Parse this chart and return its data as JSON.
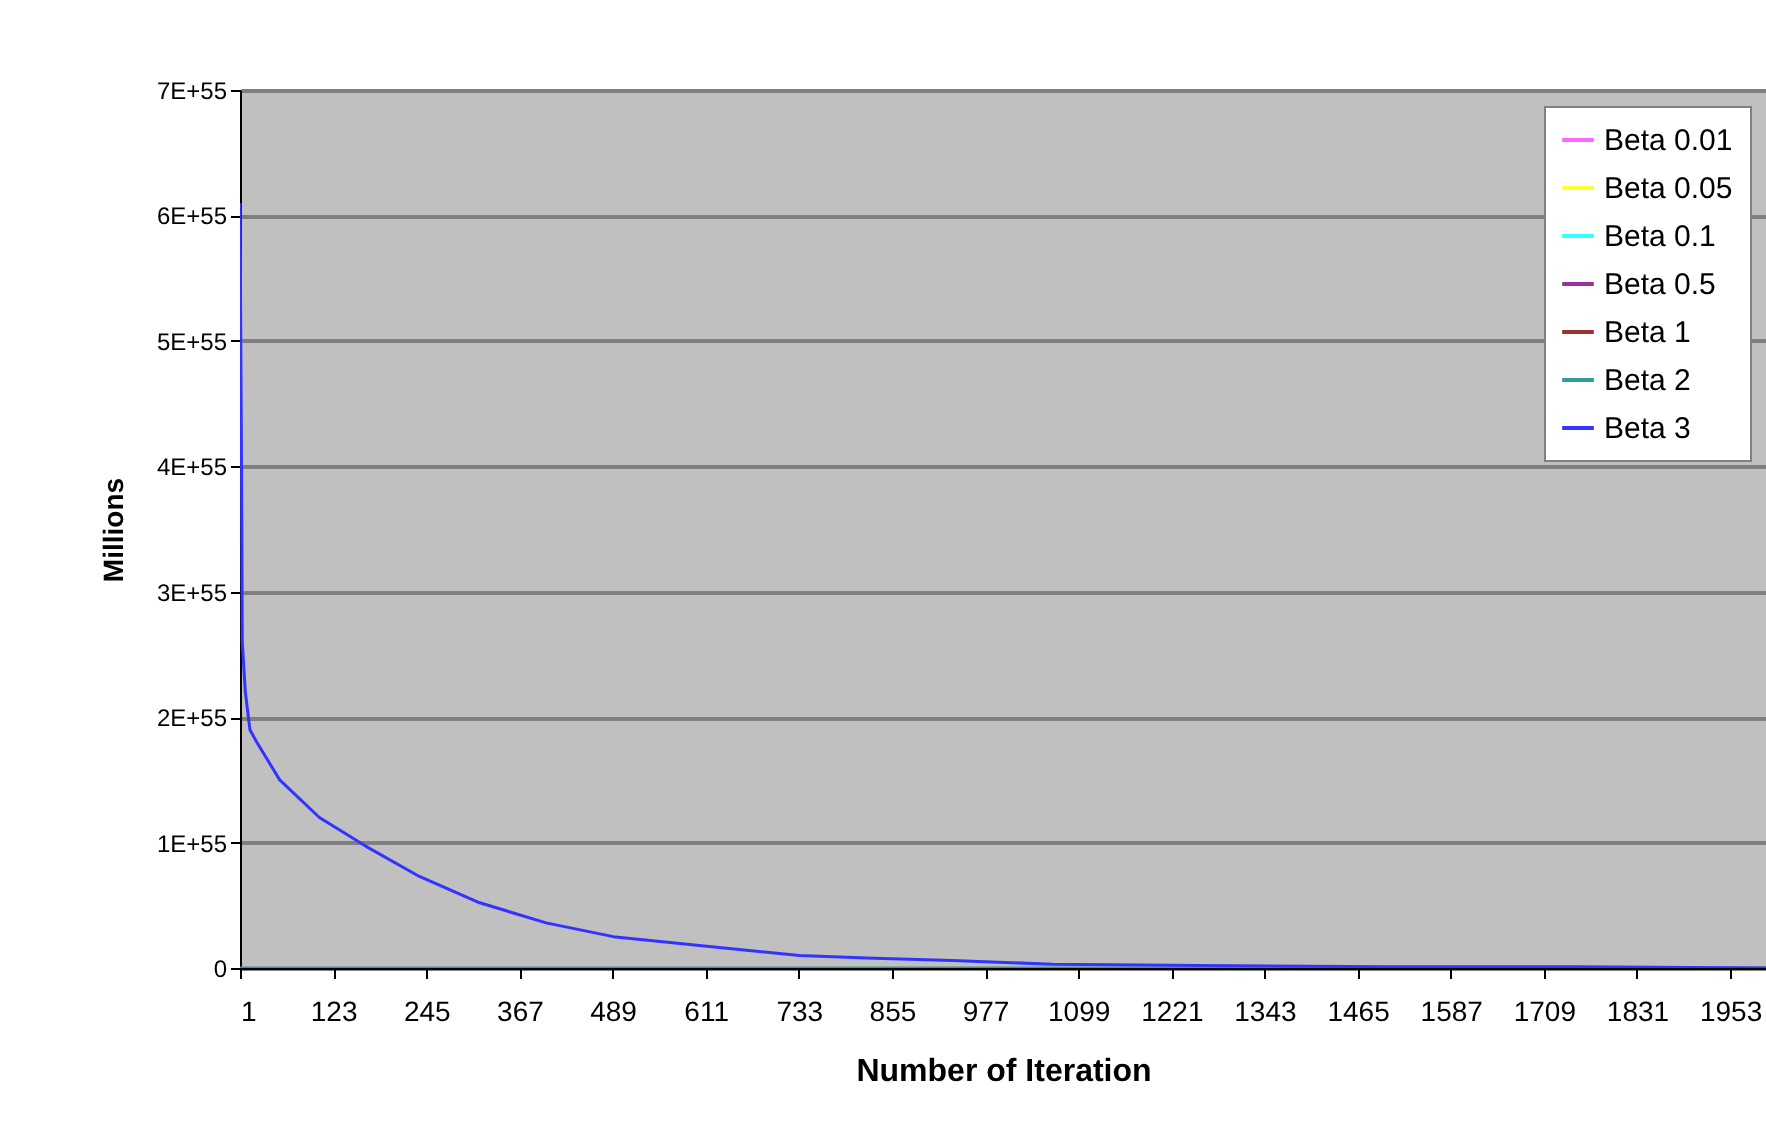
{
  "chart_data": {
    "type": "line",
    "xlabel": "Number of Iteration",
    "ylabel": "Millions",
    "xlim": [
      1,
      2000
    ],
    "xticks": [
      1,
      123,
      245,
      367,
      489,
      611,
      733,
      855,
      977,
      1099,
      1221,
      1343,
      1465,
      1587,
      1709,
      1831,
      1953
    ],
    "ylim": [
      0,
      7e+55
    ],
    "yticks": [
      0,
      {
        "value": 1e+55,
        "label": "1E+55"
      },
      {
        "value": 2e+55,
        "label": "2E+55"
      },
      {
        "value": 3e+55,
        "label": "3E+55"
      },
      {
        "value": 4e+55,
        "label": "4E+55"
      },
      {
        "value": 5e+55,
        "label": "5E+55"
      },
      {
        "value": 6e+55,
        "label": "6E+55"
      },
      {
        "value": 7e+55,
        "label": "7E+55"
      }
    ],
    "grid": "y",
    "legend": "top right",
    "series": [
      {
        "name": "Beta 0.01",
        "color": "#ff66ff",
        "values": [
          null
        ]
      },
      {
        "name": "Beta 0.05",
        "color": "#ffff33",
        "values": [
          null
        ]
      },
      {
        "name": "Beta 0.1",
        "color": "#33ffff",
        "values": [
          null
        ]
      },
      {
        "name": "Beta 0.5",
        "color": "#993399",
        "values": [
          null
        ]
      },
      {
        "name": "Beta 1",
        "color": "#993333",
        "values": [
          null
        ]
      },
      {
        "name": "Beta 2",
        "color": "#339999",
        "x": [
          1,
          2000
        ],
        "values": [
          0,
          0
        ]
      },
      {
        "name": "Beta 3",
        "color": "#3333ff",
        "x": [
          1,
          3,
          4,
          8,
          14,
          23,
          53,
          105,
          166,
          236,
          315,
          402,
          490,
          603,
          734,
          821,
          934,
          1065,
          1257,
          1500,
          1750,
          2000
        ],
        "values": [
          6.1e+55,
          4e+55,
          2.6e+55,
          2.2e+55,
          1.9e+55,
          1.8e+55,
          1.5e+55,
          1.2e+55,
          9.7e+54,
          7.3e+54,
          5.2e+54,
          3.6e+54,
          2.5e+54,
          1.8e+54,
          1e+54,
          8e+53,
          6e+53,
          3e+53,
          2e+53,
          1e+53,
          1e+53,
          0
        ]
      }
    ]
  }
}
